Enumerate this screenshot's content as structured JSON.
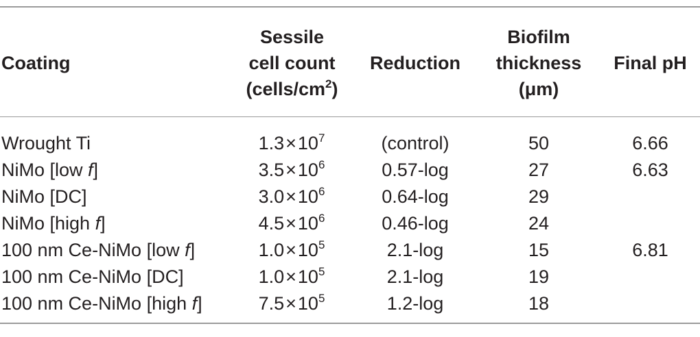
{
  "header": {
    "coating": "Coating",
    "sessile": [
      "Sessile",
      "cell count",
      "(cells/cm",
      "2",
      ")"
    ],
    "reduction": "Reduction",
    "thickness": [
      "Biofilm",
      "thickness",
      "(μm)"
    ],
    "final_ph": "Final pH"
  },
  "rows": [
    {
      "coating": "Wrought Ti",
      "mantissa": "1.3",
      "times": "×",
      "base": "10",
      "exp": "7",
      "reduction": "(control)",
      "thickness": "50",
      "ph": "6.66"
    },
    {
      "coating_pre": "NiMo [low ",
      "coating_f": "f",
      "coating_post": "]",
      "mantissa": "3.5",
      "times": "×",
      "base": "10",
      "exp": "6",
      "reduction": "0.57-log",
      "thickness": "27",
      "ph": "6.63"
    },
    {
      "coating": "NiMo [DC]",
      "mantissa": "3.0",
      "times": "×",
      "base": "10",
      "exp": "6",
      "reduction": "0.64-log",
      "thickness": "29",
      "ph": ""
    },
    {
      "coating_pre": "NiMo [high ",
      "coating_f": "f",
      "coating_post": "]",
      "mantissa": "4.5",
      "times": "×",
      "base": "10",
      "exp": "6",
      "reduction": "0.46-log",
      "thickness": "24",
      "ph": ""
    },
    {
      "coating_pre": "100 nm Ce-NiMo [low ",
      "coating_f": "f",
      "coating_post": "]",
      "mantissa": "1.0",
      "times": "×",
      "base": "10",
      "exp": "5",
      "reduction": "2.1-log",
      "thickness": "15",
      "ph": "6.81"
    },
    {
      "coating": "100 nm Ce-NiMo [DC]",
      "mantissa": "1.0",
      "times": "×",
      "base": "10",
      "exp": "5",
      "reduction": "2.1-log",
      "thickness": "19",
      "ph": ""
    },
    {
      "coating_pre": "100 nm Ce-NiMo [high ",
      "coating_f": "f",
      "coating_post": "]",
      "mantissa": "7.5",
      "times": "×",
      "base": "10",
      "exp": "5",
      "reduction": "1.2-log",
      "thickness": "18",
      "ph": ""
    }
  ]
}
